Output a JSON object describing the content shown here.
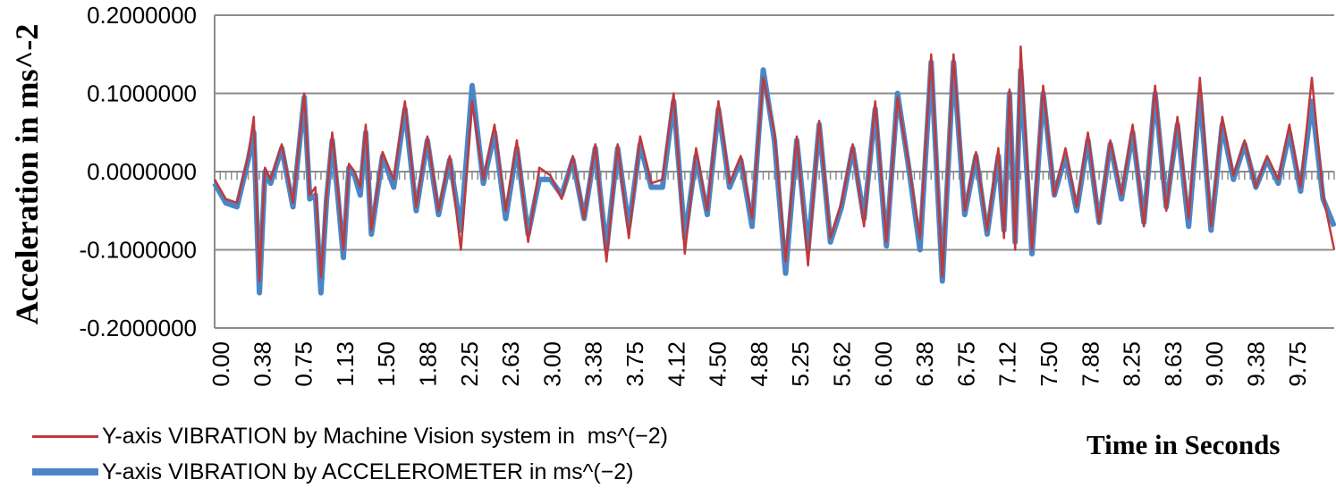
{
  "chart_data": {
    "type": "line",
    "title": "",
    "xlabel": "Time in Seconds",
    "ylabel": "Acceleration in ms^-2",
    "ylim": [
      -0.2,
      0.2
    ],
    "yticks": [
      "0.2000000",
      "0.1000000",
      "0.0000000",
      "-0.1000000",
      "-0.2000000"
    ],
    "ytick_values": [
      0.2,
      0.1,
      0.0,
      -0.1,
      -0.2
    ],
    "xticks": [
      "0.00",
      "0.38",
      "0.75",
      "1.13",
      "1.50",
      "1.88",
      "2.25",
      "2.63",
      "3.00",
      "3.38",
      "3.75",
      "4.12",
      "4.50",
      "4.88",
      "5.25",
      "5.62",
      "6.00",
      "6.38",
      "6.75",
      "7.12",
      "7.50",
      "7.88",
      "8.25",
      "8.63",
      "9.00",
      "9.38",
      "9.75"
    ],
    "xlim": [
      0,
      10
    ],
    "grid": true,
    "legend_position": "bottom-left",
    "colors": {
      "machine_vision": "#c0393b",
      "accelerometer": "#4a86c5",
      "grid": "#8c8c8c",
      "axis": "#8c8c8c"
    },
    "series": [
      {
        "name": "Y-axis VIBRATION by Machine Vision system in  ms^(−2)",
        "color": "#c0393b",
        "x": [
          0.0,
          0.1,
          0.2,
          0.3,
          0.35,
          0.4,
          0.45,
          0.5,
          0.6,
          0.7,
          0.8,
          0.85,
          0.9,
          0.95,
          1.0,
          1.05,
          1.1,
          1.15,
          1.2,
          1.25,
          1.3,
          1.35,
          1.4,
          1.5,
          1.6,
          1.7,
          1.8,
          1.9,
          2.0,
          2.1,
          2.2,
          2.3,
          2.4,
          2.5,
          2.6,
          2.7,
          2.8,
          2.9,
          3.0,
          3.1,
          3.2,
          3.3,
          3.4,
          3.5,
          3.6,
          3.7,
          3.8,
          3.9,
          4.0,
          4.1,
          4.2,
          4.3,
          4.4,
          4.5,
          4.6,
          4.7,
          4.8,
          4.9,
          5.0,
          5.1,
          5.2,
          5.3,
          5.4,
          5.5,
          5.6,
          5.7,
          5.8,
          5.9,
          6.0,
          6.1,
          6.2,
          6.3,
          6.4,
          6.5,
          6.6,
          6.7,
          6.8,
          6.9,
          7.0,
          7.05,
          7.1,
          7.15,
          7.2,
          7.3,
          7.4,
          7.5,
          7.6,
          7.7,
          7.8,
          7.9,
          8.0,
          8.1,
          8.2,
          8.3,
          8.4,
          8.5,
          8.6,
          8.7,
          8.8,
          8.9,
          9.0,
          9.1,
          9.2,
          9.3,
          9.4,
          9.5,
          9.6,
          9.7,
          9.8,
          9.9,
          10.0
        ],
        "values": [
          -0.01,
          -0.035,
          -0.04,
          0.02,
          0.07,
          -0.14,
          0.005,
          -0.01,
          0.035,
          -0.04,
          0.1,
          -0.03,
          -0.02,
          -0.135,
          -0.03,
          0.05,
          -0.02,
          -0.1,
          0.01,
          0.0,
          -0.02,
          0.06,
          -0.075,
          0.025,
          -0.01,
          0.09,
          -0.045,
          0.045,
          -0.05,
          0.02,
          -0.1,
          0.09,
          -0.01,
          0.06,
          -0.05,
          0.04,
          -0.09,
          0.005,
          -0.005,
          -0.035,
          0.02,
          -0.06,
          0.035,
          -0.115,
          0.035,
          -0.085,
          0.045,
          -0.015,
          -0.01,
          0.1,
          -0.105,
          0.03,
          -0.05,
          0.09,
          -0.015,
          0.02,
          -0.06,
          0.12,
          0.05,
          -0.115,
          0.045,
          -0.12,
          0.065,
          -0.085,
          -0.04,
          0.035,
          -0.07,
          0.09,
          -0.09,
          0.095,
          0.01,
          -0.085,
          0.15,
          -0.135,
          0.15,
          -0.05,
          0.025,
          -0.075,
          0.03,
          -0.085,
          0.105,
          -0.1,
          0.16,
          -0.1,
          0.11,
          -0.03,
          0.03,
          -0.045,
          0.05,
          -0.065,
          0.04,
          -0.03,
          0.06,
          -0.07,
          0.11,
          -0.05,
          0.07,
          -0.06,
          0.12,
          -0.07,
          0.07,
          -0.005,
          0.04,
          -0.02,
          0.02,
          -0.01,
          0.06,
          -0.02,
          0.12,
          -0.03,
          -0.1
        ]
      },
      {
        "name": "Y-axis VIBRATION by ACCELEROMETER in ms^(−2)",
        "color": "#4a86c5",
        "x": [
          0.0,
          0.1,
          0.2,
          0.3,
          0.35,
          0.4,
          0.45,
          0.5,
          0.6,
          0.7,
          0.8,
          0.85,
          0.9,
          0.95,
          1.0,
          1.05,
          1.1,
          1.15,
          1.2,
          1.25,
          1.3,
          1.35,
          1.4,
          1.5,
          1.6,
          1.7,
          1.8,
          1.9,
          2.0,
          2.1,
          2.2,
          2.3,
          2.4,
          2.5,
          2.6,
          2.7,
          2.8,
          2.9,
          3.0,
          3.1,
          3.2,
          3.3,
          3.4,
          3.5,
          3.6,
          3.7,
          3.8,
          3.9,
          4.0,
          4.1,
          4.2,
          4.3,
          4.4,
          4.5,
          4.6,
          4.7,
          4.8,
          4.9,
          5.0,
          5.1,
          5.2,
          5.3,
          5.4,
          5.5,
          5.6,
          5.7,
          5.8,
          5.9,
          6.0,
          6.1,
          6.2,
          6.3,
          6.4,
          6.5,
          6.6,
          6.7,
          6.8,
          6.9,
          7.0,
          7.05,
          7.1,
          7.15,
          7.2,
          7.3,
          7.4,
          7.5,
          7.6,
          7.7,
          7.8,
          7.9,
          8.0,
          8.1,
          8.2,
          8.3,
          8.4,
          8.5,
          8.6,
          8.7,
          8.8,
          8.9,
          9.0,
          9.1,
          9.2,
          9.3,
          9.4,
          9.5,
          9.6,
          9.7,
          9.8,
          9.9,
          10.0
        ],
        "values": [
          -0.015,
          -0.04,
          -0.045,
          0.015,
          0.05,
          -0.155,
          0.0,
          -0.015,
          0.03,
          -0.045,
          0.095,
          -0.035,
          -0.03,
          -0.155,
          -0.035,
          0.04,
          -0.03,
          -0.11,
          0.005,
          -0.005,
          -0.03,
          0.05,
          -0.08,
          0.02,
          -0.02,
          0.08,
          -0.05,
          0.04,
          -0.055,
          0.015,
          -0.075,
          0.11,
          -0.015,
          0.05,
          -0.06,
          0.03,
          -0.08,
          -0.01,
          -0.01,
          -0.03,
          0.015,
          -0.06,
          0.03,
          -0.1,
          0.03,
          -0.07,
          0.035,
          -0.02,
          -0.02,
          0.09,
          -0.085,
          0.02,
          -0.055,
          0.08,
          -0.02,
          0.015,
          -0.07,
          0.13,
          0.04,
          -0.13,
          0.04,
          -0.1,
          0.06,
          -0.09,
          -0.045,
          0.03,
          -0.06,
          0.08,
          -0.095,
          0.1,
          0.005,
          -0.1,
          0.14,
          -0.14,
          0.14,
          -0.055,
          0.02,
          -0.08,
          0.02,
          -0.075,
          0.1,
          -0.09,
          0.13,
          -0.105,
          0.1,
          -0.03,
          0.02,
          -0.05,
          0.04,
          -0.065,
          0.035,
          -0.035,
          0.05,
          -0.065,
          0.1,
          -0.045,
          0.06,
          -0.07,
          0.1,
          -0.075,
          0.06,
          -0.01,
          0.035,
          -0.02,
          0.015,
          -0.015,
          0.05,
          -0.025,
          0.09,
          -0.035,
          -0.07
        ]
      }
    ]
  }
}
